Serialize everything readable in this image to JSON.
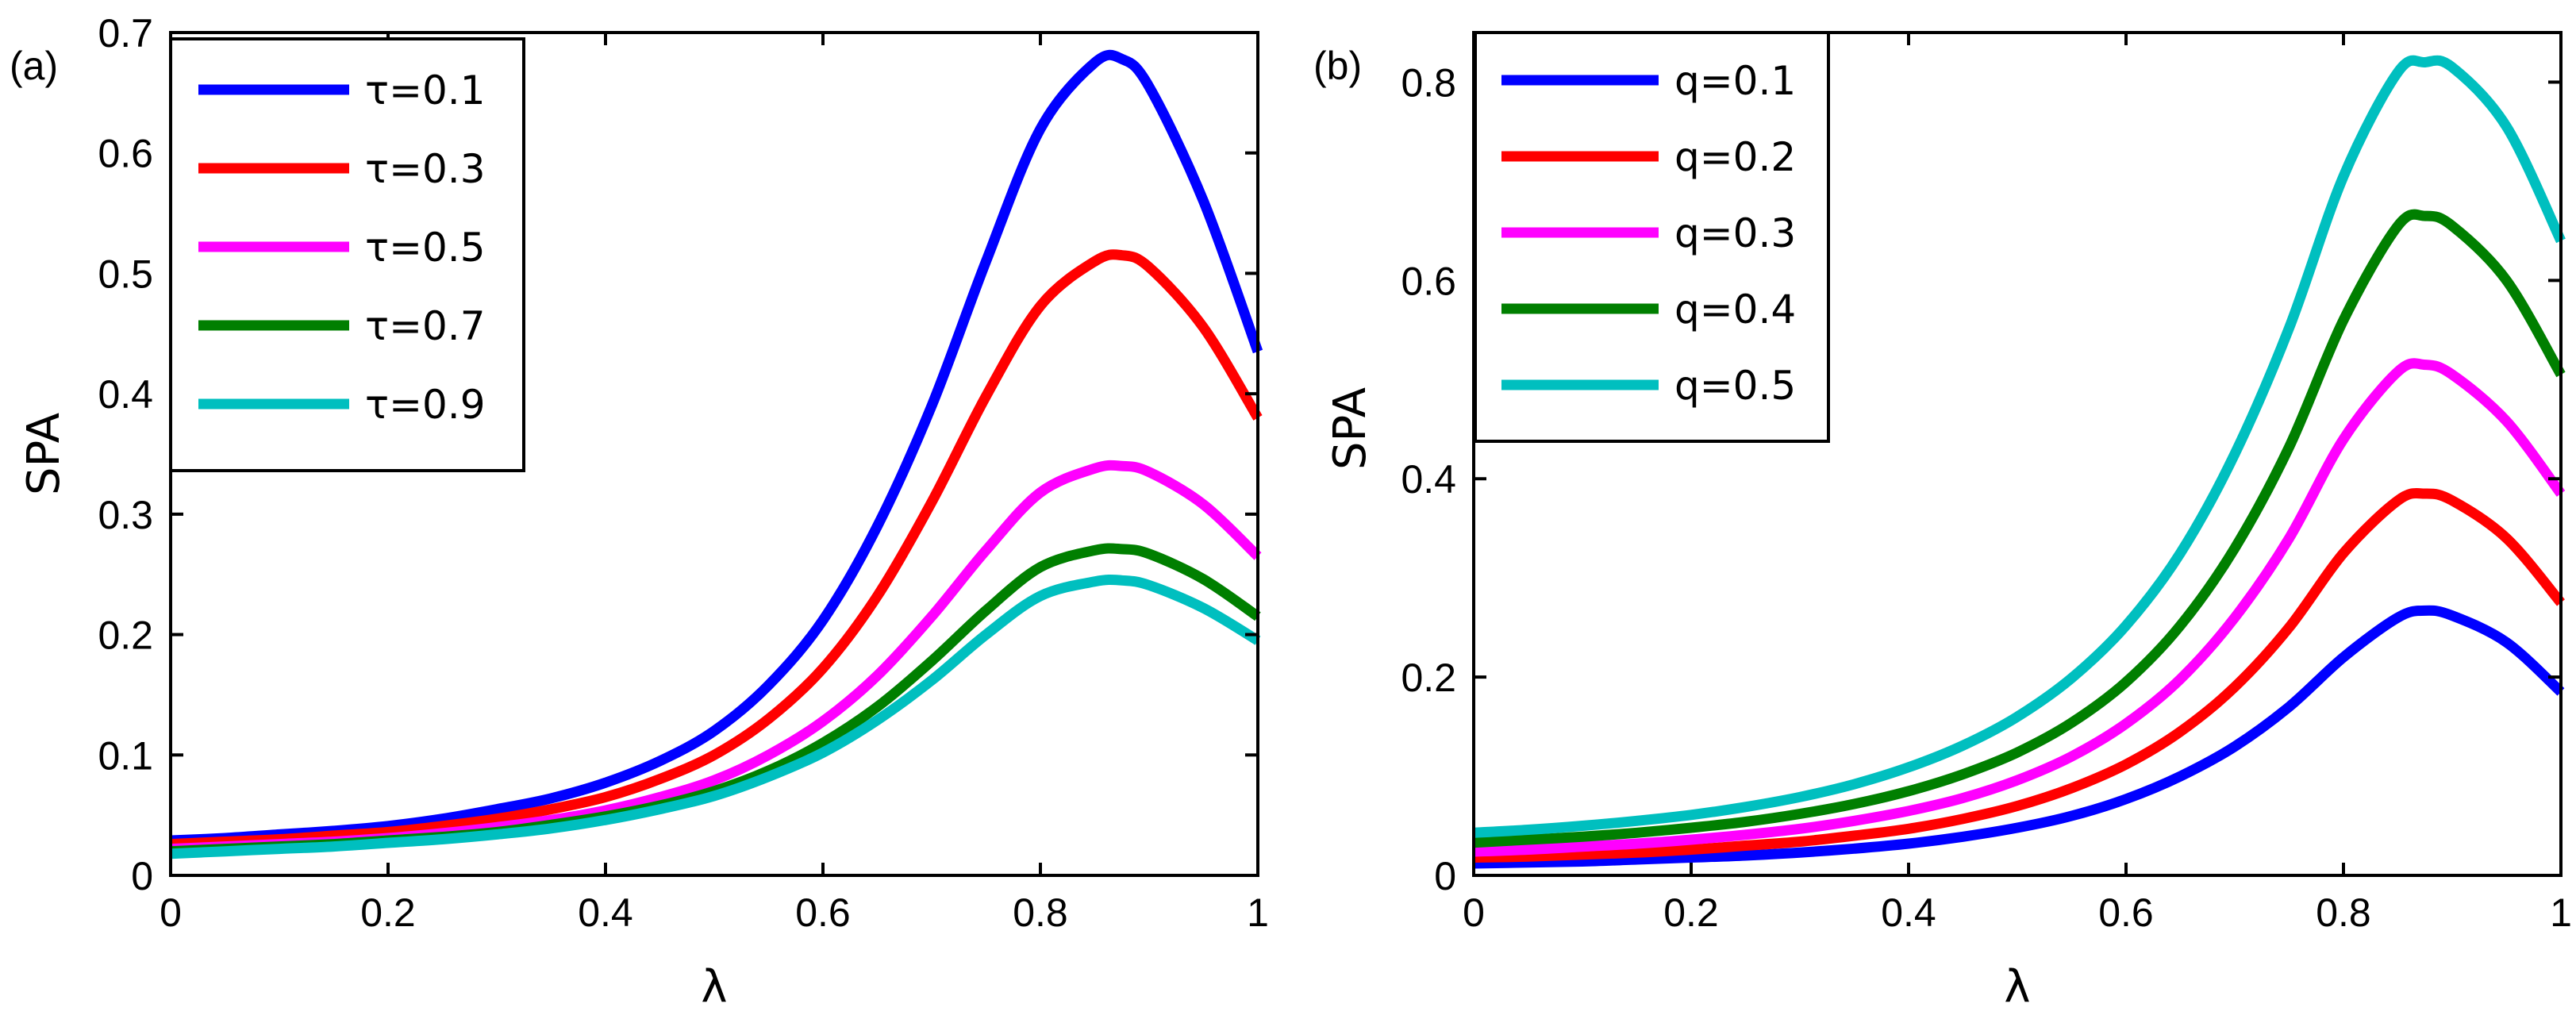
{
  "chart_data": [
    {
      "type": "line",
      "panel_label": "(a)",
      "xlabel": "λ",
      "ylabel": "SPA",
      "xlim": [
        0,
        1
      ],
      "ylim": [
        0,
        0.7
      ],
      "xticks": [
        0,
        0.2,
        0.4,
        0.6,
        0.8,
        1
      ],
      "xtick_labels": [
        "0",
        "0.2",
        "0.4",
        "0.6",
        "0.8",
        "1"
      ],
      "yticks": [
        0,
        0.1,
        0.2,
        0.3,
        0.4,
        0.5,
        0.6,
        0.7
      ],
      "ytick_labels": [
        "0",
        "0.1",
        "0.2",
        "0.3",
        "0.4",
        "0.5",
        "0.6",
        "0.7"
      ],
      "legend_position": "top-left",
      "x": [
        0,
        0.05,
        0.1,
        0.15,
        0.2,
        0.25,
        0.3,
        0.35,
        0.4,
        0.45,
        0.5,
        0.55,
        0.6,
        0.65,
        0.7,
        0.75,
        0.8,
        0.85,
        0.875,
        0.9,
        0.95,
        1
      ],
      "series": [
        {
          "name": "τ=0.1",
          "color": "#0000ff",
          "values": [
            0.029,
            0.031,
            0.034,
            0.037,
            0.041,
            0.047,
            0.055,
            0.064,
            0.077,
            0.095,
            0.12,
            0.158,
            0.212,
            0.29,
            0.39,
            0.51,
            0.62,
            0.675,
            0.678,
            0.655,
            0.56,
            0.435
          ]
        },
        {
          "name": "τ=0.3",
          "color": "#ff0000",
          "values": [
            0.026,
            0.028,
            0.03,
            0.033,
            0.036,
            0.041,
            0.047,
            0.055,
            0.065,
            0.08,
            0.1,
            0.13,
            0.172,
            0.232,
            0.31,
            0.398,
            0.473,
            0.51,
            0.515,
            0.505,
            0.455,
            0.38
          ]
        },
        {
          "name": "τ=0.5",
          "color": "#ff00ff",
          "values": [
            0.022,
            0.024,
            0.026,
            0.028,
            0.031,
            0.035,
            0.04,
            0.046,
            0.054,
            0.065,
            0.079,
            0.1,
            0.128,
            0.166,
            0.215,
            0.27,
            0.318,
            0.338,
            0.34,
            0.335,
            0.308,
            0.265
          ]
        },
        {
          "name": "τ=0.7",
          "color": "#007f00",
          "values": [
            0.02,
            0.022,
            0.024,
            0.026,
            0.029,
            0.032,
            0.036,
            0.042,
            0.049,
            0.058,
            0.07,
            0.087,
            0.11,
            0.14,
            0.178,
            0.22,
            0.256,
            0.27,
            0.271,
            0.267,
            0.246,
            0.215
          ]
        },
        {
          "name": "τ=0.9",
          "color": "#00bfbf",
          "values": [
            0.018,
            0.02,
            0.022,
            0.024,
            0.027,
            0.03,
            0.034,
            0.039,
            0.046,
            0.055,
            0.066,
            0.082,
            0.102,
            0.129,
            0.162,
            0.2,
            0.232,
            0.244,
            0.245,
            0.241,
            0.222,
            0.195
          ]
        }
      ]
    },
    {
      "type": "line",
      "panel_label": "(b)",
      "xlabel": "λ",
      "ylabel": "SPA",
      "xlim": [
        0,
        1
      ],
      "ylim": [
        0,
        0.85
      ],
      "xticks": [
        0,
        0.2,
        0.4,
        0.6,
        0.8,
        1
      ],
      "xtick_labels": [
        "0",
        "0.2",
        "0.4",
        "0.6",
        "0.8",
        "1"
      ],
      "yticks": [
        0,
        0.2,
        0.4,
        0.6,
        0.8
      ],
      "ytick_labels": [
        "0",
        "0.2",
        "0.4",
        "0.6",
        "0.8"
      ],
      "legend_position": "top-left",
      "x": [
        0,
        0.05,
        0.1,
        0.15,
        0.2,
        0.25,
        0.3,
        0.35,
        0.4,
        0.45,
        0.5,
        0.55,
        0.6,
        0.65,
        0.7,
        0.75,
        0.8,
        0.85,
        0.875,
        0.9,
        0.95,
        1
      ],
      "series": [
        {
          "name": "q=0.1",
          "color": "#0000ff",
          "values": [
            0.012,
            0.013,
            0.014,
            0.016,
            0.018,
            0.02,
            0.023,
            0.027,
            0.032,
            0.039,
            0.048,
            0.06,
            0.077,
            0.1,
            0.13,
            0.17,
            0.22,
            0.26,
            0.267,
            0.262,
            0.235,
            0.185
          ]
        },
        {
          "name": "q=0.2",
          "color": "#ff0000",
          "values": [
            0.018,
            0.019,
            0.021,
            0.023,
            0.026,
            0.03,
            0.034,
            0.04,
            0.047,
            0.057,
            0.07,
            0.088,
            0.112,
            0.145,
            0.19,
            0.25,
            0.325,
            0.378,
            0.385,
            0.378,
            0.34,
            0.275
          ]
        },
        {
          "name": "q=0.3",
          "color": "#ff00ff",
          "values": [
            0.024,
            0.026,
            0.029,
            0.032,
            0.036,
            0.041,
            0.047,
            0.055,
            0.065,
            0.078,
            0.096,
            0.12,
            0.153,
            0.198,
            0.26,
            0.34,
            0.44,
            0.508,
            0.515,
            0.505,
            0.458,
            0.385
          ]
        },
        {
          "name": "q=0.4",
          "color": "#007f00",
          "values": [
            0.033,
            0.036,
            0.039,
            0.043,
            0.048,
            0.054,
            0.062,
            0.072,
            0.085,
            0.102,
            0.124,
            0.154,
            0.195,
            0.252,
            0.33,
            0.432,
            0.56,
            0.655,
            0.665,
            0.655,
            0.6,
            0.505
          ]
        },
        {
          "name": "q=0.5",
          "color": "#00bfbf",
          "values": [
            0.043,
            0.046,
            0.05,
            0.055,
            0.061,
            0.069,
            0.079,
            0.092,
            0.109,
            0.131,
            0.16,
            0.199,
            0.252,
            0.325,
            0.425,
            0.552,
            0.705,
            0.81,
            0.82,
            0.815,
            0.755,
            0.64
          ]
        }
      ]
    }
  ]
}
